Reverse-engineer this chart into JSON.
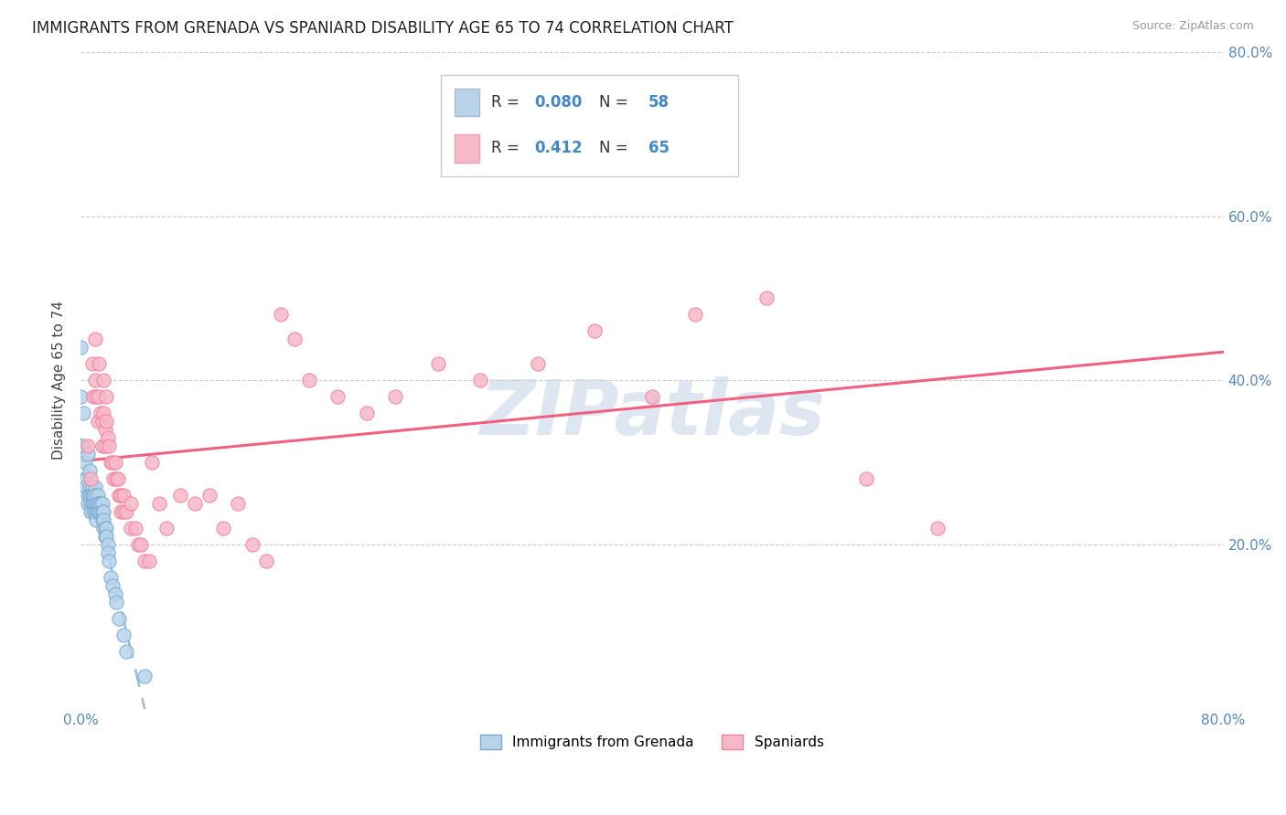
{
  "title": "IMMIGRANTS FROM GRENADA VS SPANIARD DISABILITY AGE 65 TO 74 CORRELATION CHART",
  "source": "Source: ZipAtlas.com",
  "ylabel": "Disability Age 65 to 74",
  "xlim": [
    0.0,
    0.8
  ],
  "ylim": [
    0.0,
    0.8
  ],
  "x_tick_positions": [
    0.0,
    0.8
  ],
  "x_tick_labels": [
    "0.0%",
    "80.0%"
  ],
  "y_tick_positions": [
    0.0,
    0.2,
    0.4,
    0.6,
    0.8
  ],
  "y_tick_labels": [
    "",
    "20.0%",
    "40.0%",
    "60.0%",
    "80.0%"
  ],
  "legend_R_grenada": "0.080",
  "legend_N_grenada": "58",
  "legend_R_spaniard": "0.412",
  "legend_N_spaniard": "65",
  "grenada_fill_color": "#b8d4ea",
  "spaniard_fill_color": "#f7b8c8",
  "grenada_edge_color": "#7aa8d4",
  "spaniard_edge_color": "#f080a0",
  "trendline_grenada_color": "#99bbdd",
  "trendline_spaniard_color": "#f06080",
  "watermark": "ZIPatlas",
  "watermark_color": "#c8d8e8",
  "grenada_points": [
    [
      0.0,
      0.44
    ],
    [
      0.0,
      0.38
    ],
    [
      0.002,
      0.36
    ],
    [
      0.002,
      0.32
    ],
    [
      0.003,
      0.3
    ],
    [
      0.003,
      0.28
    ],
    [
      0.004,
      0.28
    ],
    [
      0.004,
      0.27
    ],
    [
      0.005,
      0.26
    ],
    [
      0.005,
      0.25
    ],
    [
      0.005,
      0.31
    ],
    [
      0.006,
      0.29
    ],
    [
      0.006,
      0.27
    ],
    [
      0.006,
      0.26
    ],
    [
      0.007,
      0.25
    ],
    [
      0.007,
      0.24
    ],
    [
      0.007,
      0.26
    ],
    [
      0.008,
      0.27
    ],
    [
      0.008,
      0.25
    ],
    [
      0.008,
      0.26
    ],
    [
      0.009,
      0.24
    ],
    [
      0.009,
      0.25
    ],
    [
      0.009,
      0.26
    ],
    [
      0.01,
      0.27
    ],
    [
      0.01,
      0.25
    ],
    [
      0.01,
      0.24
    ],
    [
      0.01,
      0.26
    ],
    [
      0.011,
      0.25
    ],
    [
      0.011,
      0.24
    ],
    [
      0.011,
      0.23
    ],
    [
      0.012,
      0.26
    ],
    [
      0.012,
      0.25
    ],
    [
      0.012,
      0.24
    ],
    [
      0.013,
      0.25
    ],
    [
      0.013,
      0.24
    ],
    [
      0.014,
      0.25
    ],
    [
      0.014,
      0.24
    ],
    [
      0.015,
      0.25
    ],
    [
      0.015,
      0.24
    ],
    [
      0.015,
      0.23
    ],
    [
      0.016,
      0.24
    ],
    [
      0.016,
      0.22
    ],
    [
      0.016,
      0.23
    ],
    [
      0.017,
      0.22
    ],
    [
      0.017,
      0.21
    ],
    [
      0.018,
      0.22
    ],
    [
      0.018,
      0.21
    ],
    [
      0.019,
      0.2
    ],
    [
      0.019,
      0.19
    ],
    [
      0.02,
      0.18
    ],
    [
      0.021,
      0.16
    ],
    [
      0.022,
      0.15
    ],
    [
      0.024,
      0.14
    ],
    [
      0.025,
      0.13
    ],
    [
      0.027,
      0.11
    ],
    [
      0.03,
      0.09
    ],
    [
      0.032,
      0.07
    ],
    [
      0.045,
      0.04
    ]
  ],
  "spaniard_points": [
    [
      0.005,
      0.32
    ],
    [
      0.007,
      0.28
    ],
    [
      0.008,
      0.42
    ],
    [
      0.009,
      0.38
    ],
    [
      0.01,
      0.45
    ],
    [
      0.01,
      0.4
    ],
    [
      0.011,
      0.38
    ],
    [
      0.012,
      0.35
    ],
    [
      0.013,
      0.42
    ],
    [
      0.013,
      0.38
    ],
    [
      0.014,
      0.36
    ],
    [
      0.015,
      0.35
    ],
    [
      0.015,
      0.32
    ],
    [
      0.016,
      0.4
    ],
    [
      0.016,
      0.36
    ],
    [
      0.017,
      0.34
    ],
    [
      0.017,
      0.32
    ],
    [
      0.018,
      0.38
    ],
    [
      0.018,
      0.35
    ],
    [
      0.019,
      0.33
    ],
    [
      0.02,
      0.32
    ],
    [
      0.021,
      0.3
    ],
    [
      0.022,
      0.3
    ],
    [
      0.023,
      0.28
    ],
    [
      0.024,
      0.3
    ],
    [
      0.025,
      0.28
    ],
    [
      0.026,
      0.28
    ],
    [
      0.027,
      0.26
    ],
    [
      0.028,
      0.26
    ],
    [
      0.028,
      0.24
    ],
    [
      0.03,
      0.26
    ],
    [
      0.03,
      0.24
    ],
    [
      0.032,
      0.24
    ],
    [
      0.035,
      0.25
    ],
    [
      0.035,
      0.22
    ],
    [
      0.038,
      0.22
    ],
    [
      0.04,
      0.2
    ],
    [
      0.042,
      0.2
    ],
    [
      0.045,
      0.18
    ],
    [
      0.048,
      0.18
    ],
    [
      0.05,
      0.3
    ],
    [
      0.055,
      0.25
    ],
    [
      0.06,
      0.22
    ],
    [
      0.07,
      0.26
    ],
    [
      0.08,
      0.25
    ],
    [
      0.09,
      0.26
    ],
    [
      0.1,
      0.22
    ],
    [
      0.11,
      0.25
    ],
    [
      0.12,
      0.2
    ],
    [
      0.13,
      0.18
    ],
    [
      0.14,
      0.48
    ],
    [
      0.15,
      0.45
    ],
    [
      0.16,
      0.4
    ],
    [
      0.18,
      0.38
    ],
    [
      0.2,
      0.36
    ],
    [
      0.22,
      0.38
    ],
    [
      0.25,
      0.42
    ],
    [
      0.28,
      0.4
    ],
    [
      0.32,
      0.42
    ],
    [
      0.36,
      0.46
    ],
    [
      0.4,
      0.38
    ],
    [
      0.43,
      0.48
    ],
    [
      0.48,
      0.5
    ],
    [
      0.55,
      0.28
    ],
    [
      0.6,
      0.22
    ]
  ]
}
